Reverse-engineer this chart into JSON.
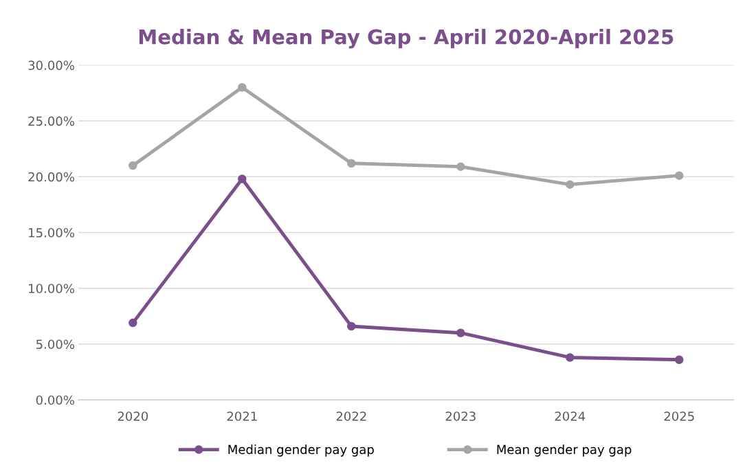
{
  "chart_data": {
    "type": "line",
    "title": "Median & Mean Pay Gap - April 2020-April 2025",
    "categories": [
      "2020",
      "2021",
      "2022",
      "2023",
      "2024",
      "2025"
    ],
    "series": [
      {
        "name": "Median gender pay gap",
        "color": "#7b4f8c",
        "values": [
          6.9,
          19.8,
          6.6,
          6.0,
          3.8,
          3.6
        ]
      },
      {
        "name": "Mean gender pay gap",
        "color": "#a5a5a5",
        "values": [
          21.0,
          28.0,
          21.2,
          20.9,
          19.3,
          20.1
        ]
      }
    ],
    "ylim": [
      0,
      30
    ],
    "yticks": [
      {
        "value": 0,
        "label": "0.00%"
      },
      {
        "value": 5,
        "label": "5.00%"
      },
      {
        "value": 10,
        "label": "10.00%"
      },
      {
        "value": 15,
        "label": "15.00%"
      },
      {
        "value": 20,
        "label": "20.00%"
      },
      {
        "value": 25,
        "label": "25.00%"
      },
      {
        "value": 30,
        "label": "30.00%"
      }
    ],
    "grid": "y",
    "legend": "bottom",
    "marker": "circle",
    "line_style": "solid"
  }
}
